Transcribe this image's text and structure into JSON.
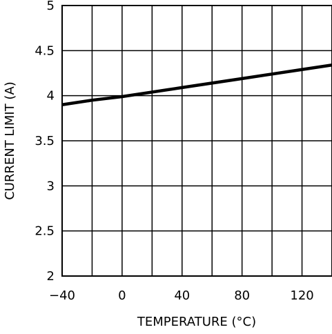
{
  "chart_data": {
    "type": "line",
    "title": "",
    "xlabel": "TEMPERATURE (°C)",
    "ylabel": "CURRENT LIMIT (A)",
    "xlim": [
      -40,
      140
    ],
    "ylim": [
      2,
      5
    ],
    "grid": true,
    "x_ticks": [
      -40,
      0,
      40,
      80,
      120
    ],
    "x_tick_labels": [
      "−40",
      "0",
      "40",
      "80",
      "120"
    ],
    "x_grid_step": 20,
    "y_ticks": [
      2,
      2.5,
      3,
      3.5,
      4,
      4.5,
      5
    ],
    "y_tick_labels": [
      "2",
      "2.5",
      "3",
      "3.5",
      "4",
      "4.5",
      "5"
    ],
    "series": [
      {
        "x": [
          -40,
          -20,
          0,
          20,
          40,
          60,
          80,
          100,
          120,
          140
        ],
        "values": [
          3.9,
          3.95,
          3.99,
          4.04,
          4.09,
          4.14,
          4.19,
          4.24,
          4.29,
          4.34
        ],
        "color": "#000000"
      }
    ]
  }
}
